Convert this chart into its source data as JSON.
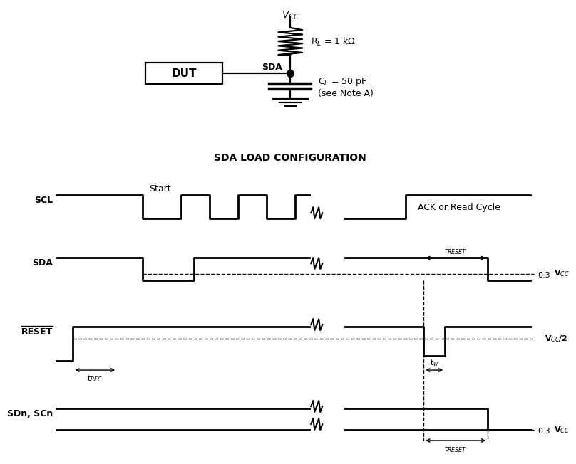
{
  "bg_color": "#ffffff",
  "circuit": {
    "vcc_label": "V$_{CC}$",
    "rl_label": "R$_L$ = 1 kΩ",
    "dut_label": "DUT",
    "sda_label": "SDA",
    "cl_label": "C$_L$ = 50 pF\n(see Note A)",
    "config_label": "SDA LOAD CONFIGURATION"
  },
  "waveforms": {
    "scl_label": "SCL",
    "sda_label": "SDA",
    "reset_label": "RESET",
    "sdn_label": "SDn, SCn",
    "start_label": "Start",
    "ack_label": "ACK or Read Cycle",
    "vcc_label": "V$_{CC}$",
    "vcc2_label": "V$_{CC}$/2",
    "treset_label": "t$_{RESET}$",
    "trec_label": "t$_{REC}$",
    "tw_label": "t$_w$",
    "val_03": "0.3"
  }
}
